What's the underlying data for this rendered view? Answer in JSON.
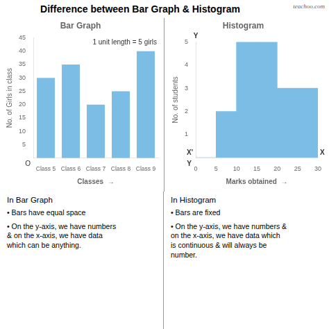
{
  "title": "Difference between Bar Graph & Histogram",
  "annotations": [
    "teachoo.com"
  ],
  "chart_data": [
    {
      "type": "bar",
      "title": "Bar Graph",
      "categories": [
        "Class 5",
        "Class 6",
        "Class 7",
        "Class 8",
        "Class 9"
      ],
      "values": [
        30,
        35,
        20,
        25,
        40
      ],
      "color": "#7BBDE4",
      "ylabel": "No. of Girls in class",
      "xlabel": "Classes  →",
      "ylim": [
        0,
        45
      ],
      "yticks": [
        5,
        10,
        15,
        20,
        25,
        30,
        35,
        40,
        45
      ],
      "grid": false,
      "annotations": [
        "1 unit length = 5 girls",
        "O"
      ],
      "caption": {
        "heading": "In Bar Graph",
        "bullets": [
          "•  Bars have equal space",
          "•  On the y-axis, we have numbers\n& on the x-axis, we have data\nwhich can be anything."
        ]
      }
    },
    {
      "type": "histogram",
      "title": "Histogram",
      "bins": [
        0,
        5,
        10,
        15,
        20,
        25,
        30
      ],
      "values": [
        0,
        2,
        5,
        5,
        3,
        3
      ],
      "color": "#7BBDE4",
      "ylabel": "No. of students",
      "xlabel": "Marks obtained  →",
      "xlim": [
        0,
        30
      ],
      "xticks": [
        0,
        5,
        10,
        15,
        20,
        25,
        30
      ],
      "ylim": [
        0,
        5
      ],
      "yticks": [
        1,
        2,
        3,
        4,
        5
      ],
      "grid": false,
      "annotations": [
        "X'",
        "X",
        "Y",
        "Y"
      ],
      "caption": {
        "heading": "In Histogram",
        "bullets": [
          "•  Bars are fixed",
          "•  On the y-axis, we have numbers &\non the x-axis, we have data which\nis continuous & will always be\nnumber."
        ]
      }
    }
  ]
}
